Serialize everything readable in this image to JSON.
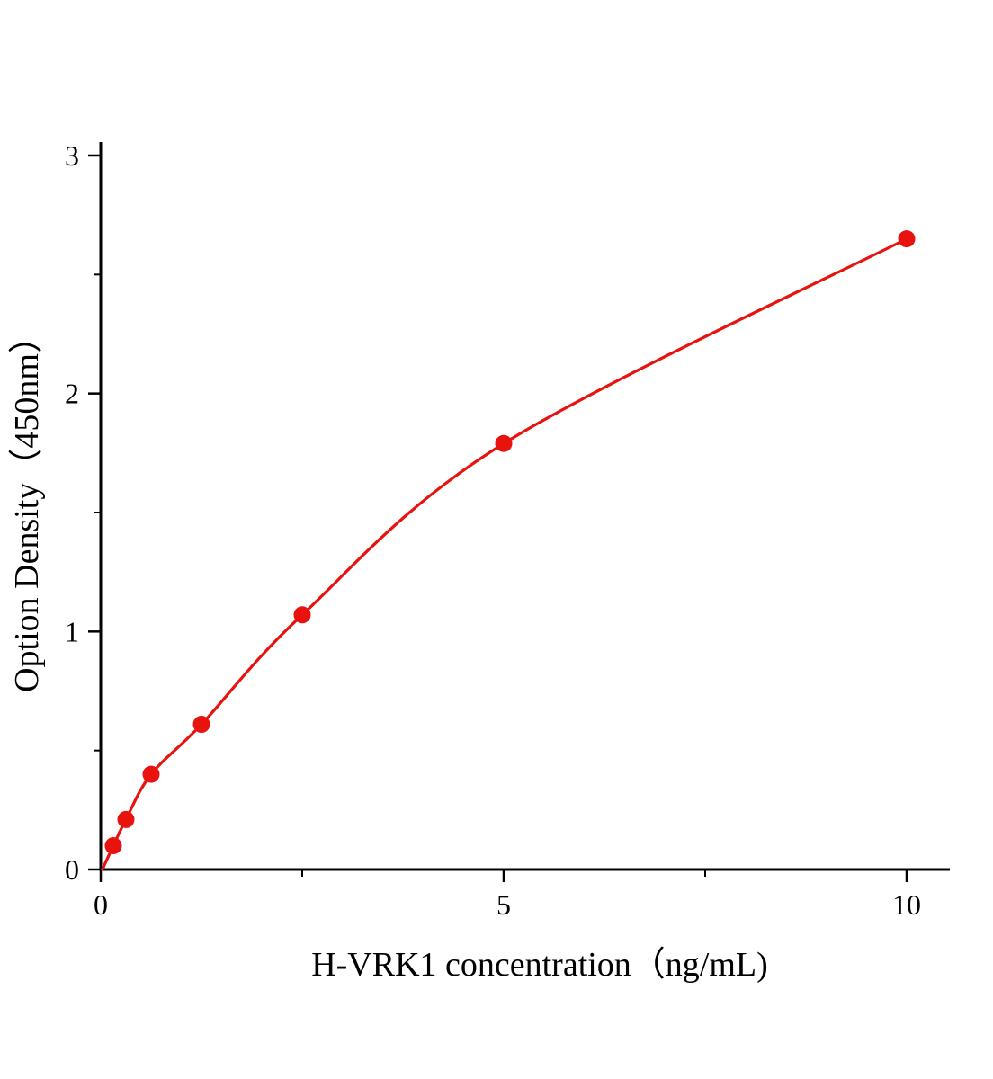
{
  "figure": {
    "background": "#ffffff"
  },
  "chart_data": {
    "type": "scatter",
    "title": "",
    "xlabel": "H-VRK1 concentration（ng/mL)",
    "ylabel": "Option Density（450nm）",
    "x": [
      0.156,
      0.3125,
      0.625,
      1.25,
      2.5,
      5,
      10
    ],
    "y": [
      0.1,
      0.21,
      0.4,
      0.61,
      1.07,
      1.79,
      2.65
    ],
    "curve_start": [
      0.02,
      0.0
    ],
    "xlim": [
      0,
      10.5
    ],
    "ylim": [
      0,
      3
    ],
    "x_major_ticks": [
      0,
      5,
      10
    ],
    "x_major_tick_labels": [
      "0",
      "5",
      "10"
    ],
    "x_minor_ticks": [
      2.5,
      7.5
    ],
    "y_major_ticks": [
      0,
      1,
      2,
      3
    ],
    "y_major_tick_labels": [
      "0",
      "1",
      "2",
      "3"
    ],
    "y_minor_ticks": [
      0.5,
      1.5,
      2.5
    ],
    "line_color": "#e8120f",
    "point_color": "#e8120f",
    "axis_color": "#000000",
    "grid": false,
    "legend_position": "none"
  }
}
